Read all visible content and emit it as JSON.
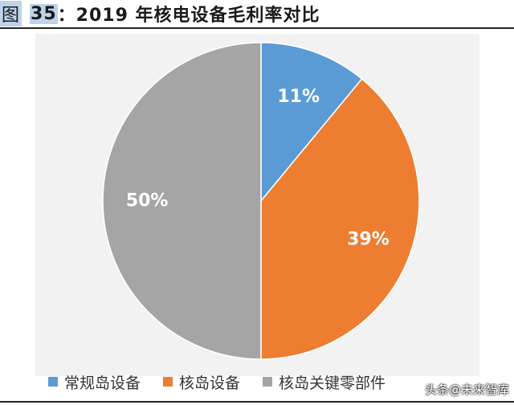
{
  "figure": {
    "label": "图",
    "number": "35",
    "title": "：2019 年核电设备毛利率对比"
  },
  "watermark": "头条@未来智库",
  "chart_data": {
    "type": "pie",
    "slices": [
      {
        "label": "常规岛设备",
        "value": 11,
        "display": "11%",
        "color": "#5b9bd5"
      },
      {
        "label": "核岛设备",
        "value": 39,
        "display": "39%",
        "color": "#ed7d31"
      },
      {
        "label": "核岛关键零部件",
        "value": 50,
        "display": "50%",
        "color": "#a5a5a5"
      }
    ],
    "start_angle_deg": 0,
    "direction": "clockwise",
    "legend_position": "bottom"
  }
}
